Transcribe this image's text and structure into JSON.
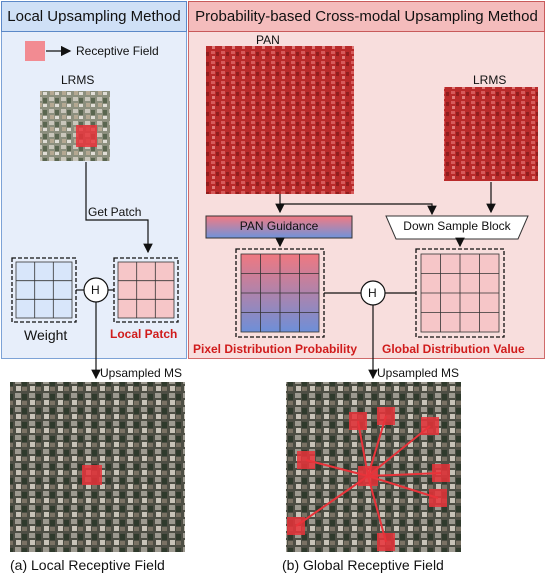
{
  "left_panel": {
    "title": "Local Upsampling Method",
    "legend_label": "Receptive Field",
    "lrms_label": "LRMS",
    "get_patch_label": "Get Patch",
    "weight_label": "Weight",
    "local_patch_label": "Local Patch",
    "operator_symbol": "H",
    "output_label": "Upsampled MS",
    "caption": "(a) Local Receptive Field"
  },
  "right_panel": {
    "title": "Probability-based Cross-modal Upsampling Method",
    "pan_label": "PAN",
    "lrms_label": "LRMS",
    "pan_guidance_label": "PAN Guidance",
    "down_sample_label": "Down Sample Block",
    "pixel_prob_label": "Pixel Distribution Probability",
    "global_value_label": "Global Distribution Value",
    "operator_symbol": "H",
    "output_label": "Upsampled MS",
    "caption": "(b) Global Receptive Field"
  },
  "colors": {
    "left_bg": "#e7eefa",
    "right_bg": "#f8dedd",
    "receptive_red": "#e8333a",
    "label_red": "#d01c1c",
    "guidance_blue": "#6d8fd8"
  }
}
